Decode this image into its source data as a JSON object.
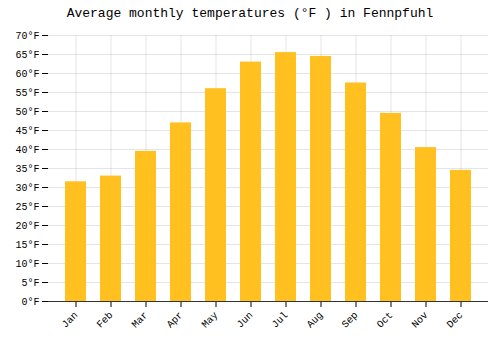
{
  "chart_data": {
    "type": "bar",
    "title": "Average monthly temperatures (°F ) in Fennpfuhl",
    "categories": [
      "Jan",
      "Feb",
      "Mar",
      "Apr",
      "May",
      "Jun",
      "Jul",
      "Aug",
      "Sep",
      "Oct",
      "Nov",
      "Dec"
    ],
    "values": [
      31.5,
      33.0,
      39.5,
      47.0,
      56.0,
      63.0,
      65.5,
      64.5,
      57.5,
      49.5,
      40.5,
      34.5
    ],
    "color": "#FFC020",
    "ylim": [
      0,
      70
    ],
    "yticks": [
      {
        "value": 0,
        "label": "0°F"
      },
      {
        "value": 5,
        "label": "5°F"
      },
      {
        "value": 10,
        "label": "10°F"
      },
      {
        "value": 15,
        "label": "15°F"
      },
      {
        "value": 20,
        "label": "20°F"
      },
      {
        "value": 25,
        "label": "25°F"
      },
      {
        "value": 30,
        "label": "30°F"
      },
      {
        "value": 35,
        "label": "35°F"
      },
      {
        "value": 40,
        "label": "40°F"
      },
      {
        "value": 45,
        "label": "45°F"
      },
      {
        "value": 50,
        "label": "50°F"
      },
      {
        "value": 55,
        "label": "55°F"
      },
      {
        "value": 60,
        "label": "60°F"
      },
      {
        "value": 65,
        "label": "65°F"
      },
      {
        "value": 70,
        "label": "70°F"
      }
    ],
    "grid": true
  }
}
